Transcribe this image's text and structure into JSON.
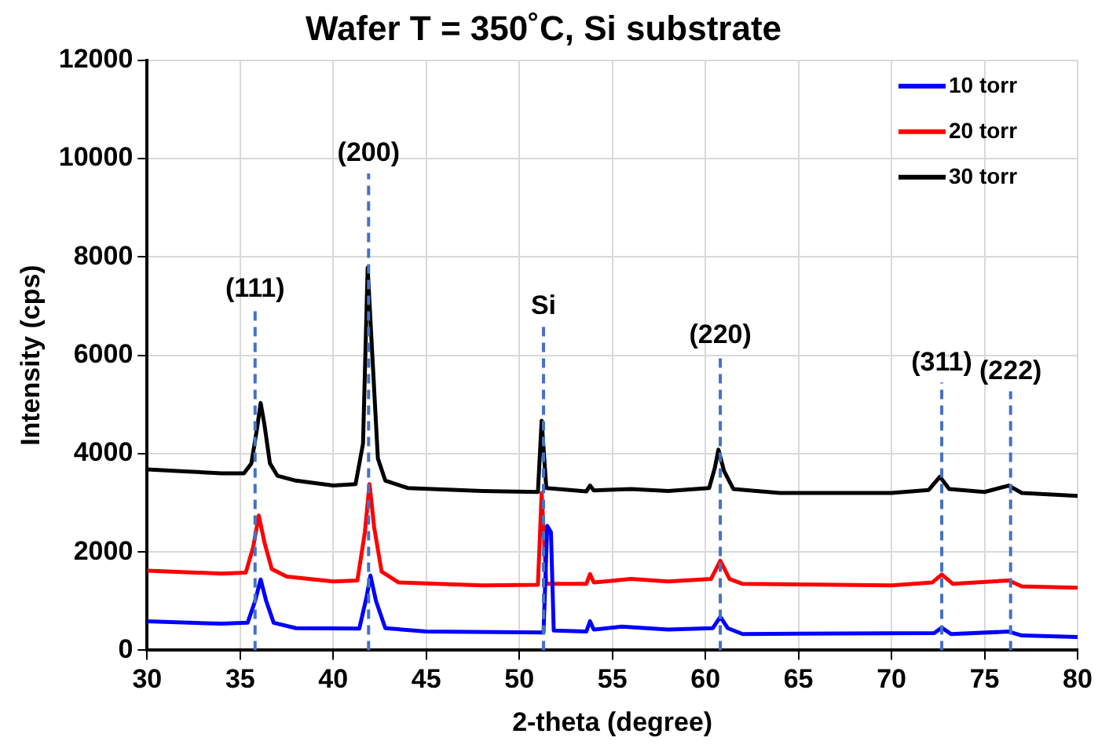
{
  "chart_data": {
    "type": "line",
    "title": "Wafer T = 350˚C, Si substrate",
    "xlabel": "2-theta (degree)",
    "ylabel": "Intensity (cps)",
    "xlim": [
      30,
      80
    ],
    "xticks": [
      30,
      35,
      40,
      45,
      50,
      55,
      60,
      65,
      70,
      75,
      80
    ],
    "ylim": [
      0,
      12000
    ],
    "yticks": [
      0,
      2000,
      4000,
      6000,
      8000,
      10000,
      12000
    ],
    "grid": true,
    "legend": "top right",
    "marker": "none",
    "line_style": "solid",
    "series": [
      {
        "name": "10 torr",
        "color": "#0000ff",
        "x": [
          30,
          34,
          35.4,
          35.8,
          36.1,
          36.4,
          36.8,
          38,
          41.4,
          41.8,
          42.0,
          42.3,
          42.8,
          45,
          51.3,
          51.5,
          51.7,
          51.85,
          53.6,
          53.8,
          54.0,
          55.5,
          58,
          60.4,
          60.8,
          61.2,
          62,
          72.3,
          72.7,
          73.2,
          76.3,
          77,
          80
        ],
        "values": [
          590,
          540,
          560,
          1000,
          1440,
          1000,
          560,
          450,
          440,
          1100,
          1520,
          1000,
          450,
          380,
          360,
          2530,
          2400,
          400,
          380,
          590,
          420,
          480,
          420,
          450,
          680,
          450,
          330,
          350,
          460,
          330,
          380,
          300,
          270
        ]
      },
      {
        "name": "20 torr",
        "color": "#ff0000",
        "x": [
          30,
          34,
          35.3,
          35.7,
          36.0,
          36.3,
          36.7,
          37.5,
          40,
          41.3,
          41.7,
          41.95,
          42.2,
          42.6,
          43.5,
          48,
          51.0,
          51.2,
          51.45,
          53.6,
          53.8,
          54.0,
          56,
          58,
          60.3,
          60.8,
          61.3,
          62,
          70,
          72.2,
          72.7,
          73.3,
          76.3,
          77,
          80
        ],
        "values": [
          1620,
          1560,
          1580,
          2100,
          2740,
          2200,
          1650,
          1500,
          1400,
          1420,
          2400,
          3380,
          2500,
          1600,
          1380,
          1320,
          1330,
          3200,
          1350,
          1350,
          1550,
          1380,
          1450,
          1400,
          1450,
          1820,
          1450,
          1350,
          1320,
          1380,
          1540,
          1350,
          1420,
          1300,
          1270
        ]
      },
      {
        "name": "30 torr",
        "color": "#000000",
        "x": [
          30,
          32,
          34,
          35.2,
          35.6,
          35.9,
          36.1,
          36.3,
          36.6,
          37,
          38,
          40,
          41.2,
          41.6,
          41.85,
          42.1,
          42.4,
          42.8,
          44,
          48,
          51.0,
          51.2,
          51.45,
          53.6,
          53.8,
          54.0,
          56,
          58,
          60.2,
          60.5,
          60.7,
          61.0,
          61.5,
          64,
          70,
          72.0,
          72.6,
          73.1,
          75,
          76.3,
          77,
          80
        ],
        "values": [
          3680,
          3640,
          3600,
          3600,
          3800,
          4500,
          5030,
          4600,
          3800,
          3550,
          3450,
          3350,
          3380,
          4200,
          7780,
          6000,
          3900,
          3450,
          3300,
          3240,
          3220,
          4670,
          3300,
          3230,
          3350,
          3250,
          3280,
          3240,
          3300,
          3700,
          4080,
          3650,
          3280,
          3200,
          3200,
          3260,
          3530,
          3280,
          3220,
          3350,
          3200,
          3140
        ]
      }
    ],
    "ref_lines": [
      {
        "axis": "x",
        "value": 35.8,
        "color": "#4472c4",
        "line_style": "dashed"
      },
      {
        "axis": "x",
        "value": 41.9,
        "color": "#4472c4",
        "line_style": "dashed"
      },
      {
        "axis": "x",
        "value": 51.3,
        "color": "#4472c4",
        "line_style": "dashed"
      },
      {
        "axis": "x",
        "value": 60.8,
        "color": "#4472c4",
        "line_style": "dashed"
      },
      {
        "axis": "x",
        "value": 72.7,
        "color": "#4472c4",
        "line_style": "dashed"
      },
      {
        "axis": "x",
        "value": 76.4,
        "color": "#4472c4",
        "line_style": "dashed"
      }
    ],
    "annotations": [
      "(111)",
      "(200)",
      "Si",
      "(220)",
      "(311)",
      "(222)"
    ]
  }
}
